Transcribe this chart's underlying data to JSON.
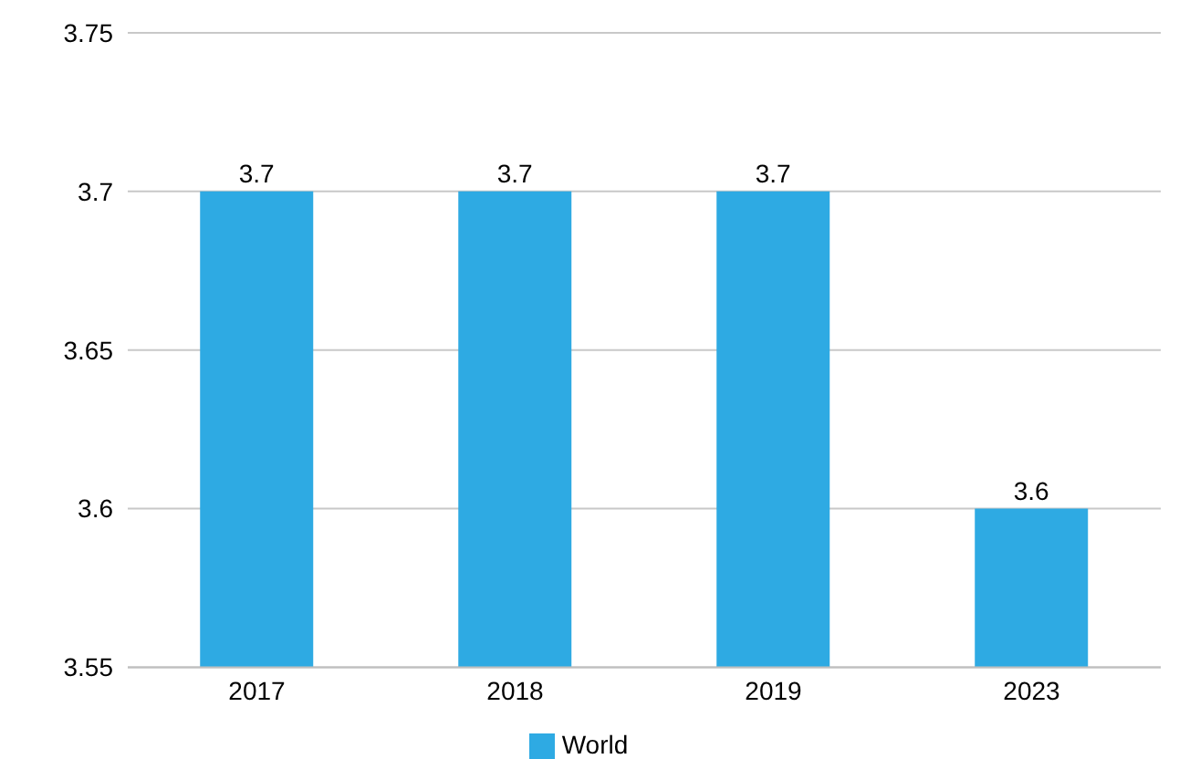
{
  "chart_data": {
    "type": "bar",
    "categories": [
      "2017",
      "2018",
      "2019",
      "2023"
    ],
    "series": [
      {
        "name": "World",
        "color": "#2eaae3",
        "values": [
          3.7,
          3.7,
          3.7,
          3.6
        ]
      }
    ],
    "ylim": [
      3.55,
      3.75
    ],
    "yticks": [
      3.55,
      3.6,
      3.65,
      3.7,
      3.75
    ],
    "grid": "y",
    "legend": "bottom",
    "data_labels": true
  }
}
